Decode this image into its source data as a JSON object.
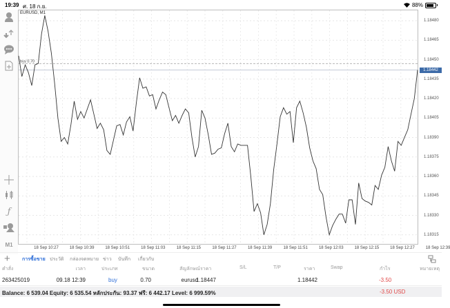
{
  "status_bar": {
    "time": "19:39",
    "date": "ศ. 18 ก.ย.",
    "battery": "88%"
  },
  "left_toolbar": {
    "top_items": [
      {
        "name": "account-icon"
      },
      {
        "name": "trade-arrows-icon"
      },
      {
        "name": "chat-icon"
      },
      {
        "name": "new-document-icon"
      }
    ],
    "bottom_items": [
      {
        "name": "crosshair-icon"
      },
      {
        "name": "indicators-icon"
      },
      {
        "name": "function-icon"
      },
      {
        "name": "objects-icon"
      },
      {
        "name": "timeframe",
        "label": "M1"
      }
    ]
  },
  "chart": {
    "title": "EURUSD, M1",
    "order_line_label": "buy 0.70",
    "current_price": "1.18442",
    "price_ticks": [
      "1.18480",
      "1.18465",
      "1.18450",
      "1.18435",
      "1.18420",
      "1.18405",
      "1.18390",
      "1.18375",
      "1.18360",
      "1.18345",
      "1.18330",
      "1.18315"
    ],
    "time_ticks": [
      "18 Sep 10:27",
      "18 Sep 10:39",
      "18 Sep 10:51",
      "18 Sep 11:03",
      "18 Sep 11:15",
      "18 Sep 11:27",
      "18 Sep 11:39",
      "18 Sep 11:51",
      "18 Sep 12:03",
      "18 Sep 12:15",
      "18 Sep 12:27",
      "18 Sep 12:39"
    ]
  },
  "chart_data": {
    "type": "line",
    "title": "EURUSD, M1",
    "xlabel": "",
    "ylabel": "",
    "ylim": [
      1.18308,
      1.18488
    ],
    "x_tick_labels": [
      "18 Sep 10:27",
      "18 Sep 10:39",
      "18 Sep 10:51",
      "18 Sep 11:03",
      "18 Sep 11:15",
      "18 Sep 11:27",
      "18 Sep 11:39",
      "18 Sep 11:51",
      "18 Sep 12:03",
      "18 Sep 12:15",
      "18 Sep 12:27",
      "18 Sep 12:39"
    ],
    "y_tick_labels": [
      "1.18480",
      "1.18465",
      "1.18450",
      "1.18435",
      "1.18420",
      "1.18405",
      "1.18390",
      "1.18375",
      "1.18360",
      "1.18345",
      "1.18330",
      "1.18315"
    ],
    "grid": true,
    "annotations": [
      "buy 0.70 @ 1.18447",
      "current 1.18442"
    ],
    "series": [
      {
        "name": "EURUSD M1 close",
        "values": [
          1.18453,
          1.18437,
          1.18446,
          1.1844,
          1.1843,
          1.18446,
          1.18447,
          1.1847,
          1.18484,
          1.18472,
          1.18455,
          1.18432,
          1.18405,
          1.18387,
          1.1839,
          1.18385,
          1.184,
          1.18418,
          1.18404,
          1.1841,
          1.18405,
          1.18412,
          1.18419,
          1.18408,
          1.18397,
          1.18401,
          1.18396,
          1.1838,
          1.18377,
          1.18388,
          1.18399,
          1.184,
          1.18392,
          1.18402,
          1.18406,
          1.18395,
          1.18417,
          1.18436,
          1.18428,
          1.18429,
          1.18422,
          1.18423,
          1.18412,
          1.18419,
          1.18425,
          1.18423,
          1.18413,
          1.18403,
          1.18407,
          1.18401,
          1.18407,
          1.18412,
          1.18409,
          1.1839,
          1.18375,
          1.18383,
          1.18411,
          1.18405,
          1.18392,
          1.18377,
          1.18378,
          1.18381,
          1.18382,
          1.18393,
          1.18401,
          1.18383,
          1.18379,
          1.18385,
          1.18384,
          1.18384,
          1.18384,
          1.1836,
          1.18333,
          1.18339,
          1.18332,
          1.18315,
          1.18323,
          1.18339,
          1.18365,
          1.18385,
          1.18406,
          1.18413,
          1.18408,
          1.1841,
          1.18386,
          1.18413,
          1.18418,
          1.18409,
          1.18398,
          1.18382,
          1.18372,
          1.18366,
          1.1835,
          1.18346,
          1.18329,
          1.18315,
          1.18322,
          1.18327,
          1.18331,
          1.18331,
          1.18324,
          1.18342,
          1.18342,
          1.18323,
          1.18355,
          1.18343,
          1.18341,
          1.1834,
          1.18338,
          1.18353,
          1.1835,
          1.18361,
          1.18367,
          1.18383,
          1.18372,
          1.18364,
          1.18387,
          1.18384,
          1.1839,
          1.18396,
          1.18408,
          1.1842,
          1.18442
        ]
      }
    ]
  },
  "tabs": [
    {
      "label": "การซื้อขาย",
      "active": true
    },
    {
      "label": "ประวัติ",
      "active": false
    },
    {
      "label": "กล่องจดหมาย",
      "active": false
    },
    {
      "label": "ข่าว",
      "active": false
    },
    {
      "label": "บันทึก",
      "active": false
    },
    {
      "label": "เกี่ยวกับ",
      "active": false
    }
  ],
  "table": {
    "headers": [
      "คำสั่ง",
      "เวลา",
      "ประเภท",
      "ขนาด",
      "สัญลักษณ์",
      "ราคา",
      "S/L",
      "T/P",
      "ราคา",
      "Swap",
      "กำไร",
      "หมายเหตุ"
    ],
    "rows": [
      {
        "order": "263425019",
        "time": "09.18 12:39",
        "type": "buy",
        "volume": "0.70",
        "symbol": "eurusd",
        "open_price": "1.18447",
        "sl": "",
        "tp": "",
        "price": "1.18442",
        "swap": "",
        "profit": "-3.50",
        "comment": ""
      }
    ]
  },
  "summary": {
    "text": "Balance: 6 539.04 Equity: 6 535.54 หลักประกัน: 93.37 ฟรี: 6 442.17 Level: 6 999.59%",
    "total_profit": "-3.50  USD"
  },
  "colors": {
    "accent": "#2f6fd8",
    "loss": "#e04848",
    "price_label": "#3d6ba8"
  }
}
